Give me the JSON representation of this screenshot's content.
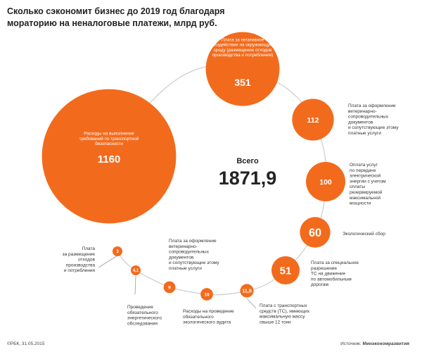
{
  "title": "Сколько сэкономит бизнес до 2019 год благодаря мораторию на неналоговые платежи, млрд руб.",
  "total_label": "Всего",
  "total_value": "1871,9",
  "footer": {
    "credit": "©РБК, 31.05.2015",
    "source_label": "Источник:",
    "source_value": "Минэкономразвития"
  },
  "colors": {
    "bubble": "#f26b1d",
    "path": "#cccccc",
    "text": "#333333"
  },
  "chart_data": {
    "type": "bubble",
    "title": "Сколько сэкономит бизнес до 2019 год благодаря мораторию на неналоговые платежи, млрд руб.",
    "unit": "млрд руб.",
    "total": "1871,9",
    "items": [
      {
        "value": 1160,
        "display": "1160",
        "label": [
          "Расходы на выполнение",
          "требований по транспортной",
          "безопасности"
        ]
      },
      {
        "value": 351,
        "display": "351",
        "label": [
          "Плата за негативное",
          "воздействие на окружающую",
          "среду (размещение отходов",
          "производства и потребления)"
        ]
      },
      {
        "value": 112,
        "display": "112",
        "label": [
          "Плата за оформление",
          "ветеринарно-",
          "сопроводительных",
          "документов",
          "и сопутствующие этому",
          "платные услуги"
        ]
      },
      {
        "value": 100,
        "display": "100",
        "label": [
          "Оплата услуг",
          "по передаче",
          "электрической",
          "энергии с учетом",
          "оплаты",
          "резервируемой",
          "максимальной",
          "мощности"
        ]
      },
      {
        "value": 60,
        "display": "60",
        "label": [
          "Экологический сбор"
        ]
      },
      {
        "value": 51,
        "display": "51",
        "label": [
          "Плата за специальное",
          "разрешение",
          "ТС на движение",
          "по автомобильным",
          "дорогам"
        ]
      },
      {
        "value": 11.8,
        "display": "11,8",
        "label": [
          "Плата с транспортных",
          "средств (ТС), имеющих",
          "максимальную массу",
          "свыше 12 тонн"
        ]
      },
      {
        "value": 10,
        "display": "10",
        "label": [
          "Расходы на проведение",
          "обязательного",
          "экологического аудита"
        ]
      },
      {
        "value": 9,
        "display": "9",
        "label": [
          "Проведение",
          "обязательного",
          "энергетического",
          "обследования"
        ]
      },
      {
        "value": 4.1,
        "display": "4,1",
        "label": [
          "Плата за оформление",
          "ветеринарно-",
          "сопроводительных",
          "документов",
          "и сопутствующие этому",
          "платные услуги"
        ]
      },
      {
        "value": 3,
        "display": "3",
        "label": [
          "Плата",
          "за размещение",
          "отходов",
          "производства",
          "и потребления"
        ]
      }
    ]
  }
}
